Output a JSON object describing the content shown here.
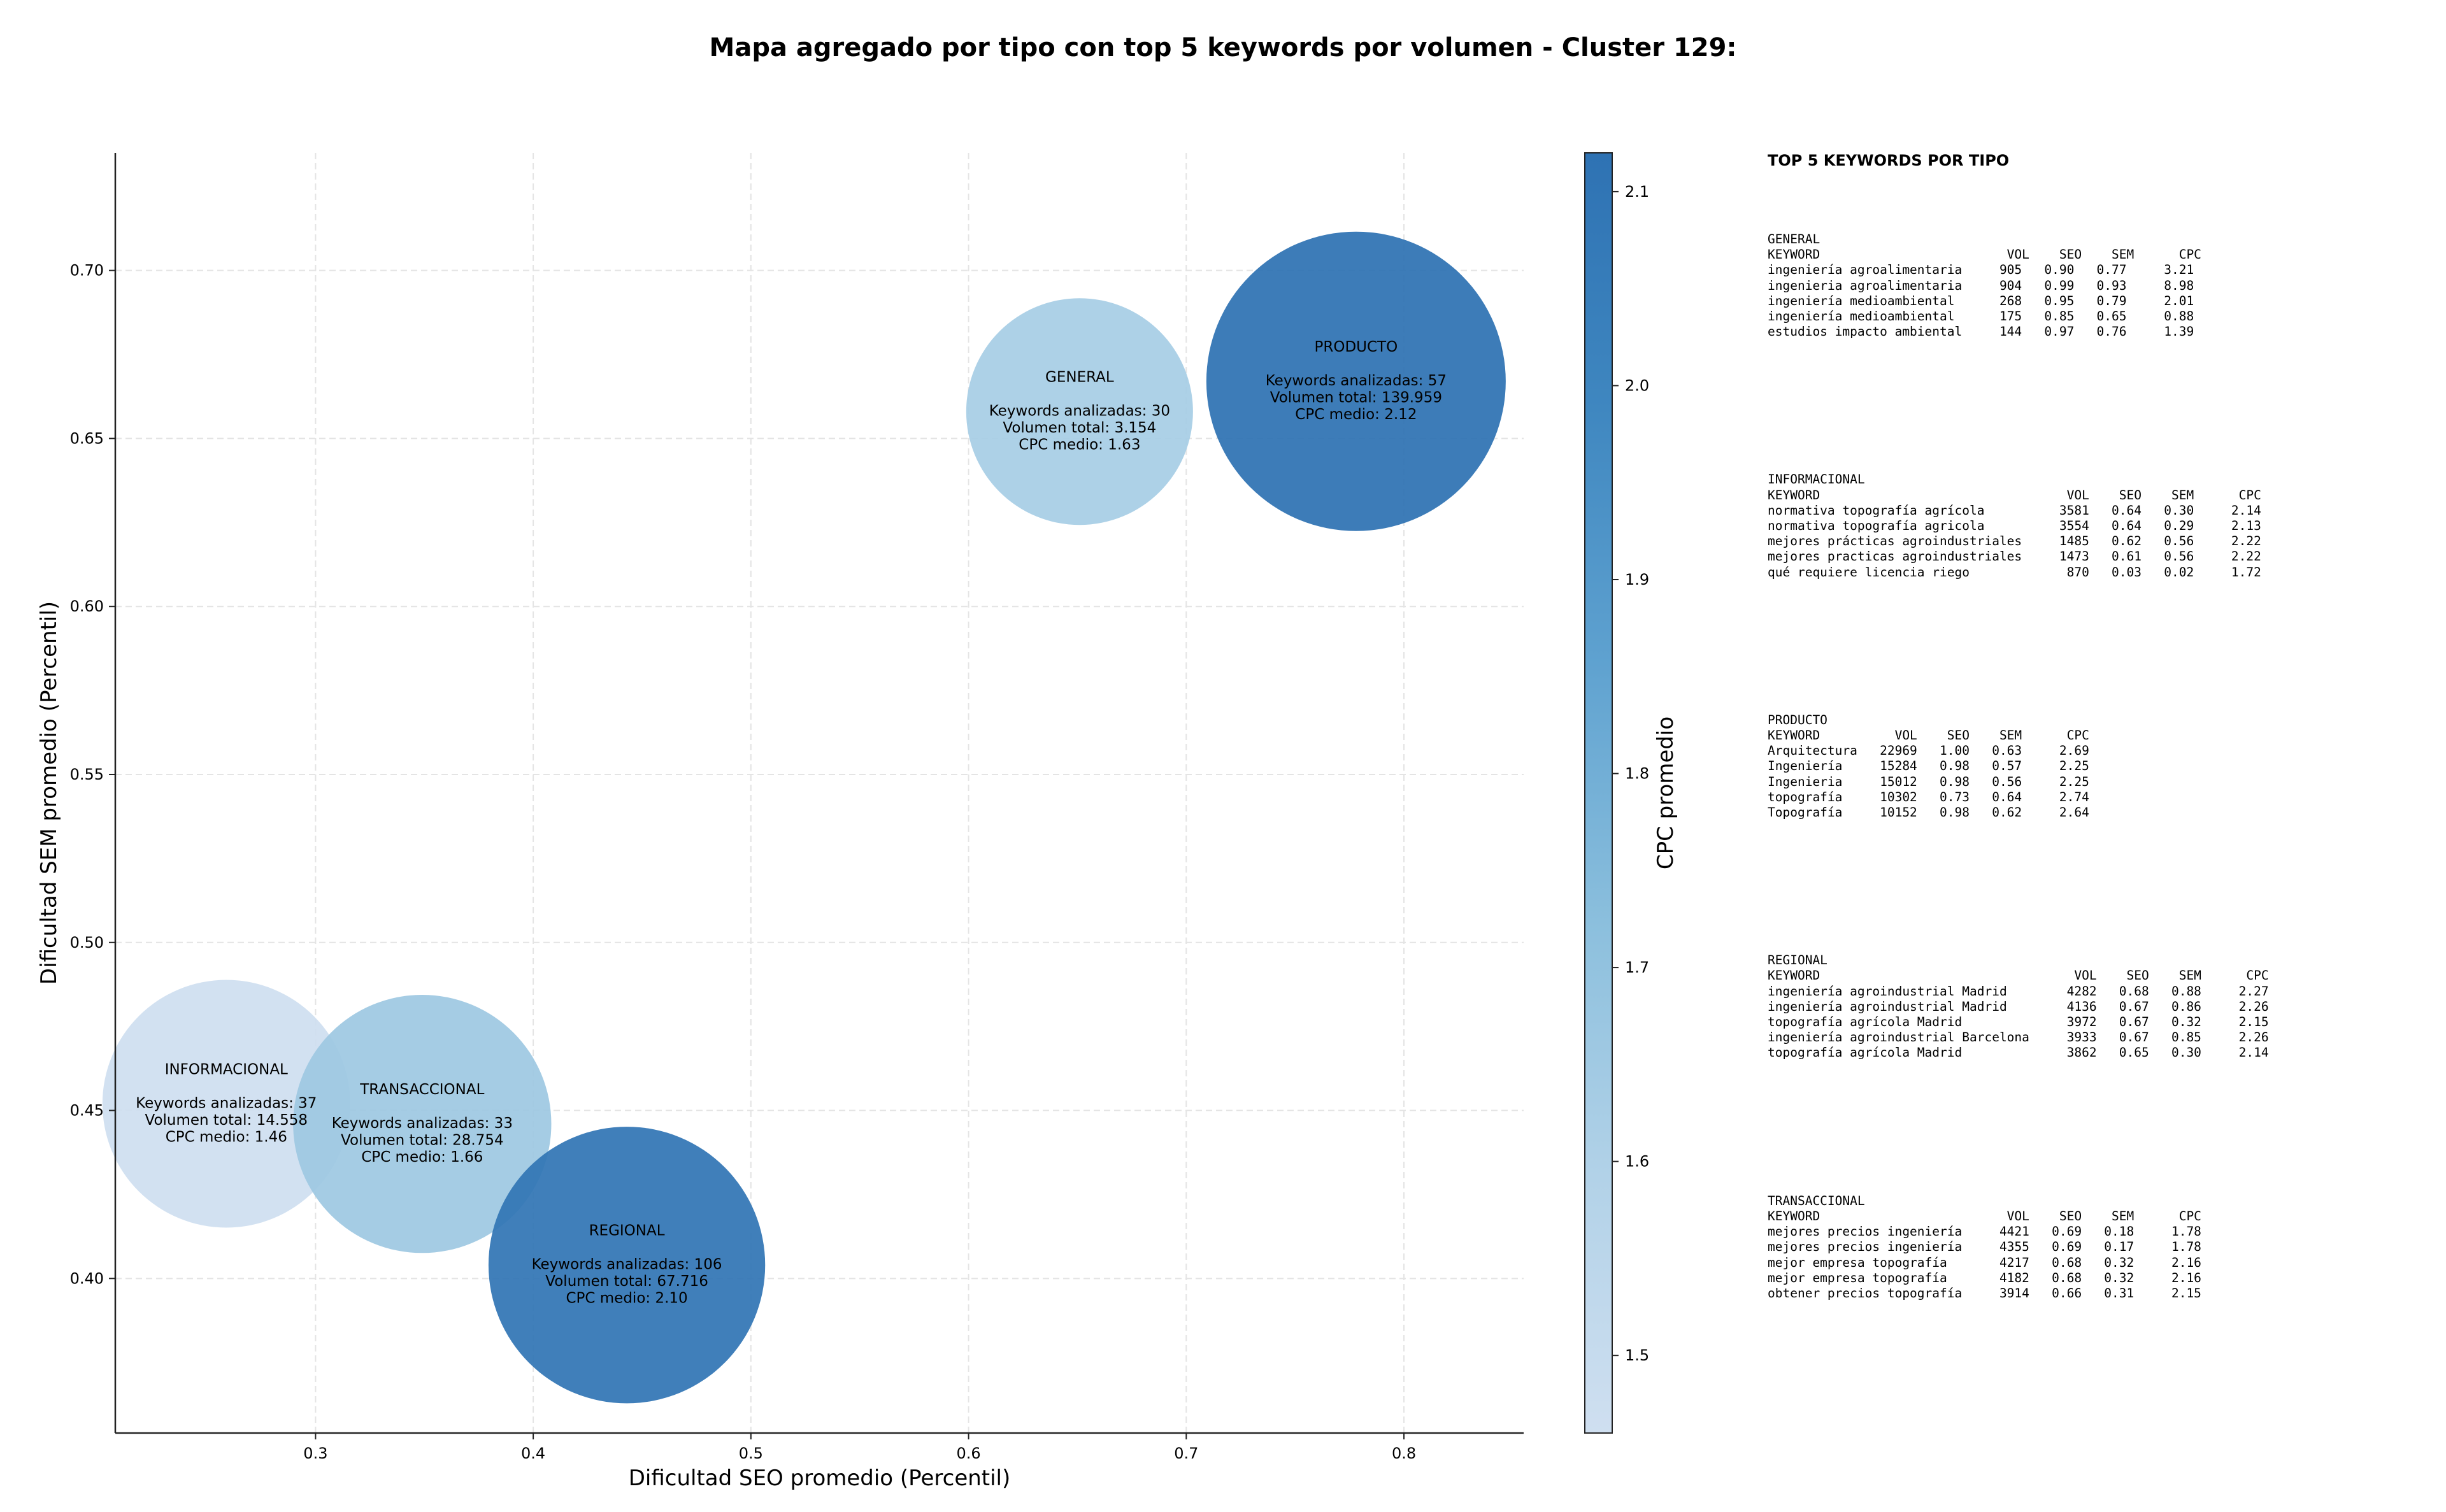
{
  "chart_data": {
    "type": "scatter",
    "title": "Mapa agregado por tipo con top 5 keywords por volumen - Cluster 129:",
    "xlabel": "Dificultad SEO promedio (Percentil)",
    "ylabel": "Dificultad SEM promedio (Percentil)",
    "xlim": [
      0.208,
      0.855
    ],
    "ylim": [
      0.354,
      0.735
    ],
    "xticks": [
      "0.3",
      "0.4",
      "0.5",
      "0.6",
      "0.7",
      "0.8"
    ],
    "yticks": [
      "0.40",
      "0.45",
      "0.50",
      "0.55",
      "0.60",
      "0.65",
      "0.70"
    ],
    "grid": true,
    "colorbar": {
      "label": "CPC promedio",
      "min": 1.46,
      "max": 2.12,
      "ticks": [
        "1.5",
        "1.6",
        "1.7",
        "1.8",
        "1.9",
        "2.0",
        "2.1"
      ],
      "colormap": [
        "#cfdff0",
        "#b2d2e8",
        "#8bbfdd",
        "#5fa2d0",
        "#3f87c0",
        "#2e72b3"
      ]
    },
    "points": [
      {
        "name": "GENERAL",
        "x": 0.651,
        "y": 0.658,
        "cpc": 1.63,
        "volume": 3154,
        "keywords": 30,
        "lines": [
          "GENERAL",
          "",
          "Keywords analizadas: 30",
          "Volumen total: 3.154",
          "CPC medio: 1.63"
        ]
      },
      {
        "name": "PRODUCTO",
        "x": 0.778,
        "y": 0.667,
        "cpc": 2.12,
        "volume": 139959,
        "keywords": 57,
        "lines": [
          "PRODUCTO",
          "",
          "Keywords analizadas: 57",
          "Volumen total: 139.959",
          "CPC medio: 2.12"
        ]
      },
      {
        "name": "INFORMACIONAL",
        "x": 0.259,
        "y": 0.452,
        "cpc": 1.46,
        "volume": 14558,
        "keywords": 37,
        "lines": [
          "INFORMACIONAL",
          "",
          "Keywords analizadas: 37",
          "Volumen total: 14.558",
          "CPC medio: 1.46"
        ]
      },
      {
        "name": "TRANSACCIONAL",
        "x": 0.349,
        "y": 0.446,
        "cpc": 1.66,
        "volume": 28754,
        "keywords": 33,
        "lines": [
          "TRANSACCIONAL",
          "",
          "Keywords analizadas: 33",
          "Volumen total: 28.754",
          "CPC medio: 1.66"
        ]
      },
      {
        "name": "REGIONAL",
        "x": 0.443,
        "y": 0.404,
        "cpc": 2.1,
        "volume": 67716,
        "keywords": 106,
        "lines": [
          "REGIONAL",
          "",
          "Keywords analizadas: 106",
          "Volumen total: 67.716",
          "CPC medio: 2.10"
        ]
      }
    ]
  },
  "side_panel": {
    "heading": "TOP 5 KEYWORDS POR TIPO",
    "groups": [
      {
        "name": "GENERAL",
        "header": "KEYWORD                         VOL    SEO    SEM      CPC",
        "rows": [
          "ingeniería agroalimentaria     905   0.90   0.77     3.21",
          "ingenieria agroalimentaria     904   0.99   0.93     8.98",
          "ingeniería medioambiental      268   0.95   0.79     2.01",
          "ingeniería medioambiental      175   0.85   0.65     0.88",
          "estudios impacto ambiental     144   0.97   0.76     1.39"
        ]
      },
      {
        "name": "INFORMACIONAL",
        "header": "KEYWORD                                 VOL    SEO    SEM      CPC",
        "rows": [
          "normativa topografía agrícola          3581   0.64   0.30     2.14",
          "normativa topografía agricola          3554   0.64   0.29     2.13",
          "mejores prácticas agroindustriales     1485   0.62   0.56     2.22",
          "mejores practicas agroindustriales     1473   0.61   0.56     2.22",
          "qué requiere licencia riego             870   0.03   0.02     1.72"
        ]
      },
      {
        "name": "PRODUCTO",
        "header": "KEYWORD          VOL    SEO    SEM      CPC",
        "rows": [
          "Arquitectura   22969   1.00   0.63     2.69",
          "Ingeniería     15284   0.98   0.57     2.25",
          "Ingenieria     15012   0.98   0.56     2.25",
          "topografía     10302   0.73   0.64     2.74",
          "Topografía     10152   0.98   0.62     2.64"
        ]
      },
      {
        "name": "REGIONAL",
        "header": "KEYWORD                                  VOL    SEO    SEM      CPC",
        "rows": [
          "ingeniería agroindustrial Madrid        4282   0.68   0.88     2.27",
          "ingeniería agroindustrial Madrid        4136   0.67   0.86     2.26",
          "topografía agrícola Madrid              3972   0.67   0.32     2.15",
          "ingeniería agroindustrial Barcelona     3933   0.67   0.85     2.26",
          "topografía agrícola Madrid              3862   0.65   0.30     2.14"
        ]
      },
      {
        "name": "TRANSACCIONAL",
        "header": "KEYWORD                         VOL    SEO    SEM      CPC",
        "rows": [
          "mejores precios ingeniería     4421   0.69   0.18     1.78",
          "mejores precios ingeniería     4355   0.69   0.17     1.78",
          "mejor empresa topografía       4217   0.68   0.32     2.16",
          "mejor empresa topografía       4182   0.68   0.32     2.16",
          "obtener precios topografía     3914   0.66   0.31     2.15"
        ]
      }
    ]
  }
}
